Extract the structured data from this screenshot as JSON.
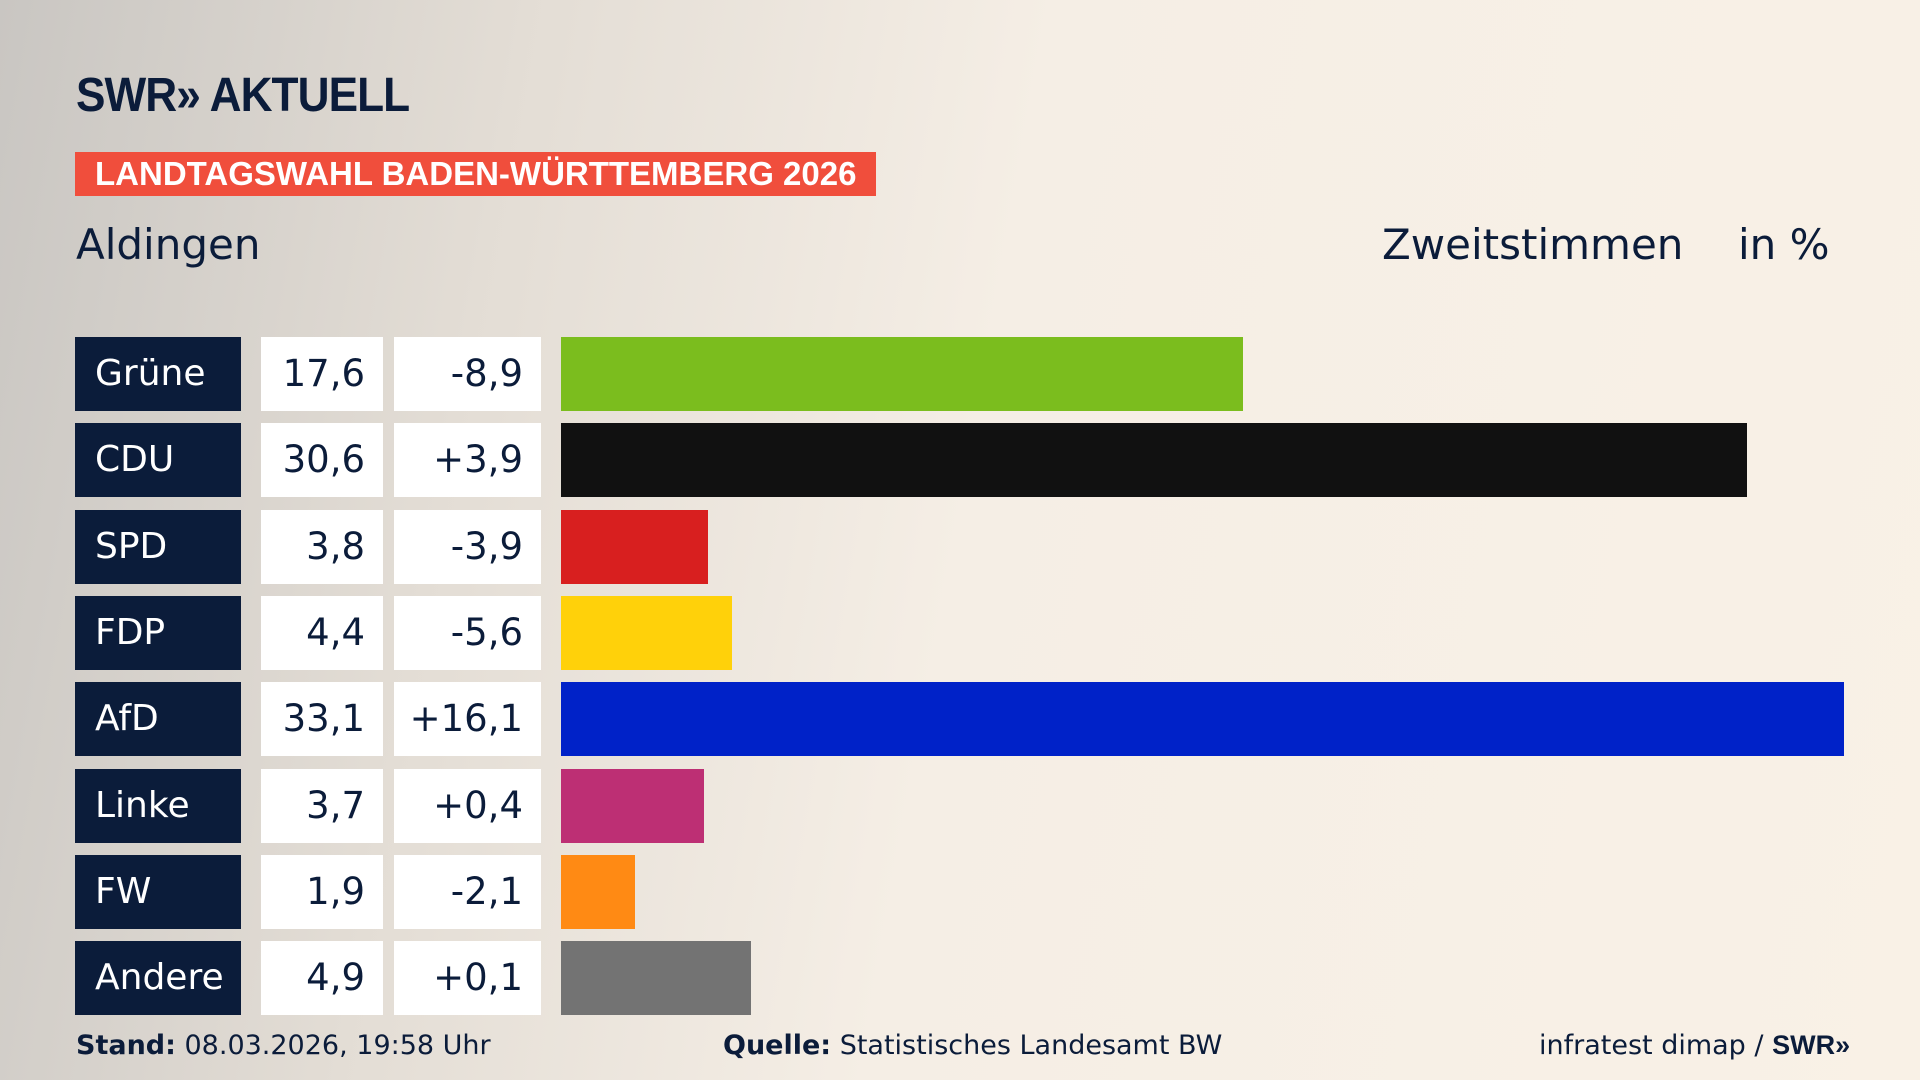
{
  "header": {
    "logo": "SWR» AKTUELL",
    "banner": "LANDTAGSWAHL BADEN-WÜRTTEMBERG 2026",
    "place": "Aldingen",
    "vote_type": "Zweitstimmen",
    "unit": "in %"
  },
  "chart_data": {
    "type": "bar",
    "orientation": "horizontal",
    "categories": [
      "Grüne",
      "CDU",
      "SPD",
      "FDP",
      "AfD",
      "Linke",
      "FW",
      "Andere"
    ],
    "values": [
      17.6,
      30.6,
      3.8,
      4.4,
      33.1,
      3.7,
      1.9,
      4.9
    ],
    "value_labels": [
      "17,6",
      "30,6",
      "3,8",
      "4,4",
      "33,1",
      "3,7",
      "1,9",
      "4,9"
    ],
    "diff_labels": [
      "-8,9",
      "+3,9",
      "-3,9",
      "-5,6",
      "+16,1",
      "+0,4",
      "-2,1",
      "+0,1"
    ],
    "colors": [
      "#7bbd1e",
      "#111111",
      "#d81f1f",
      "#ffd10a",
      "#0022c8",
      "#bd2f74",
      "#ff8a14",
      "#737373"
    ],
    "xlim": [
      0,
      33.1
    ],
    "grid": false
  },
  "footer": {
    "stand_label": "Stand:",
    "stand_value": " 08.03.2026, 19:58 Uhr",
    "source_label": "Quelle:",
    "source_value": " Statistisches Landesamt BW",
    "credit": "infratest dimap / ",
    "credit_logo": "SWR»"
  }
}
